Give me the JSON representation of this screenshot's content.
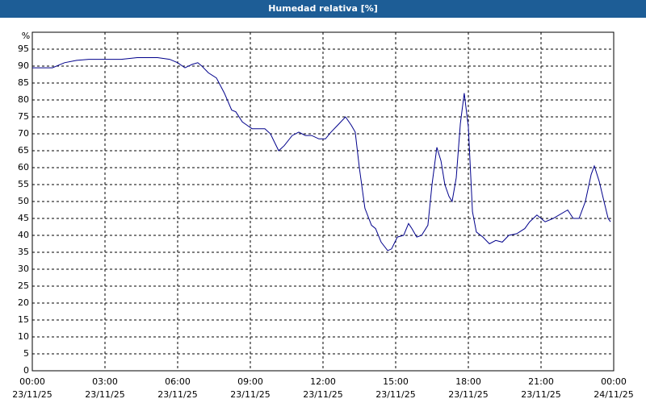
{
  "chart_data": {
    "type": "line",
    "title": "Humedad relativa [%]",
    "ylabel": "%",
    "xlim": [
      0,
      24
    ],
    "xticks": [
      {
        "value": 0,
        "label": "00:00"
      },
      {
        "value": 3,
        "label": "03:00"
      },
      {
        "value": 6,
        "label": "06:00"
      },
      {
        "value": 9,
        "label": "09:00"
      },
      {
        "value": 12,
        "label": "12:00"
      },
      {
        "value": 15,
        "label": "15:00"
      },
      {
        "value": 18,
        "label": "18:00"
      },
      {
        "value": 21,
        "label": "21:00"
      },
      {
        "value": 24,
        "label": "00:00"
      }
    ],
    "xtick_dates": [
      "23/11/25",
      "23/11/25",
      "23/11/25",
      "23/11/25",
      "23/11/25",
      "23/11/25",
      "23/11/25",
      "23/11/25",
      "24/11/25"
    ],
    "ylim": [
      0,
      100
    ],
    "yticks": [
      0,
      5,
      10,
      15,
      20,
      25,
      30,
      35,
      40,
      45,
      50,
      55,
      60,
      65,
      70,
      75,
      80,
      85,
      90,
      95
    ],
    "grid": true,
    "x": [
      0,
      0.83,
      1.33,
      1.83,
      2.33,
      3.67,
      4.33,
      5.17,
      5.67,
      6.0,
      6.3,
      6.6,
      6.83,
      7.0,
      7.27,
      7.6,
      7.93,
      8.23,
      8.4,
      8.67,
      8.87,
      9.07,
      9.6,
      9.83,
      10.17,
      10.4,
      10.73,
      11.0,
      11.27,
      11.53,
      11.83,
      12.1,
      12.33,
      12.6,
      12.93,
      13.17,
      13.33,
      13.5,
      13.73,
      14.0,
      14.17,
      14.4,
      14.67,
      14.83,
      15.07,
      15.33,
      15.53,
      15.67,
      15.87,
      16.07,
      16.33,
      16.5,
      16.7,
      16.87,
      17.03,
      17.2,
      17.33,
      17.5,
      17.67,
      17.83,
      18.0,
      18.17,
      18.33,
      18.6,
      18.87,
      19.13,
      19.4,
      19.67,
      20.0,
      20.33,
      20.53,
      20.83,
      21.17,
      21.5,
      22.1,
      22.33,
      22.57,
      22.83,
      23.07,
      23.2,
      23.4,
      23.6,
      23.77,
      23.87
    ],
    "series": [
      {
        "color": "#00008b",
        "values": [
          89.5,
          89.5,
          91,
          91.7,
          92,
          92,
          92.5,
          92.5,
          92,
          91,
          89.5,
          90.5,
          91,
          90,
          88,
          86.5,
          82,
          77,
          76.5,
          73.5,
          72.5,
          71.5,
          71.5,
          70,
          65,
          66.5,
          69.5,
          70.5,
          69.5,
          69.5,
          68.5,
          68.5,
          70.5,
          72.5,
          75,
          72.5,
          70.5,
          60,
          48,
          43,
          42,
          38,
          35.5,
          36,
          39.5,
          40,
          43.5,
          42,
          39.5,
          40,
          43,
          55,
          66,
          62,
          55,
          51.5,
          50,
          57,
          73,
          82,
          72,
          47,
          41,
          39.5,
          37.5,
          38.5,
          38,
          40,
          40.5,
          42,
          44,
          46,
          44,
          45,
          47.5,
          45,
          45,
          50,
          58,
          60.5,
          56,
          50,
          45,
          44
        ]
      }
    ]
  }
}
